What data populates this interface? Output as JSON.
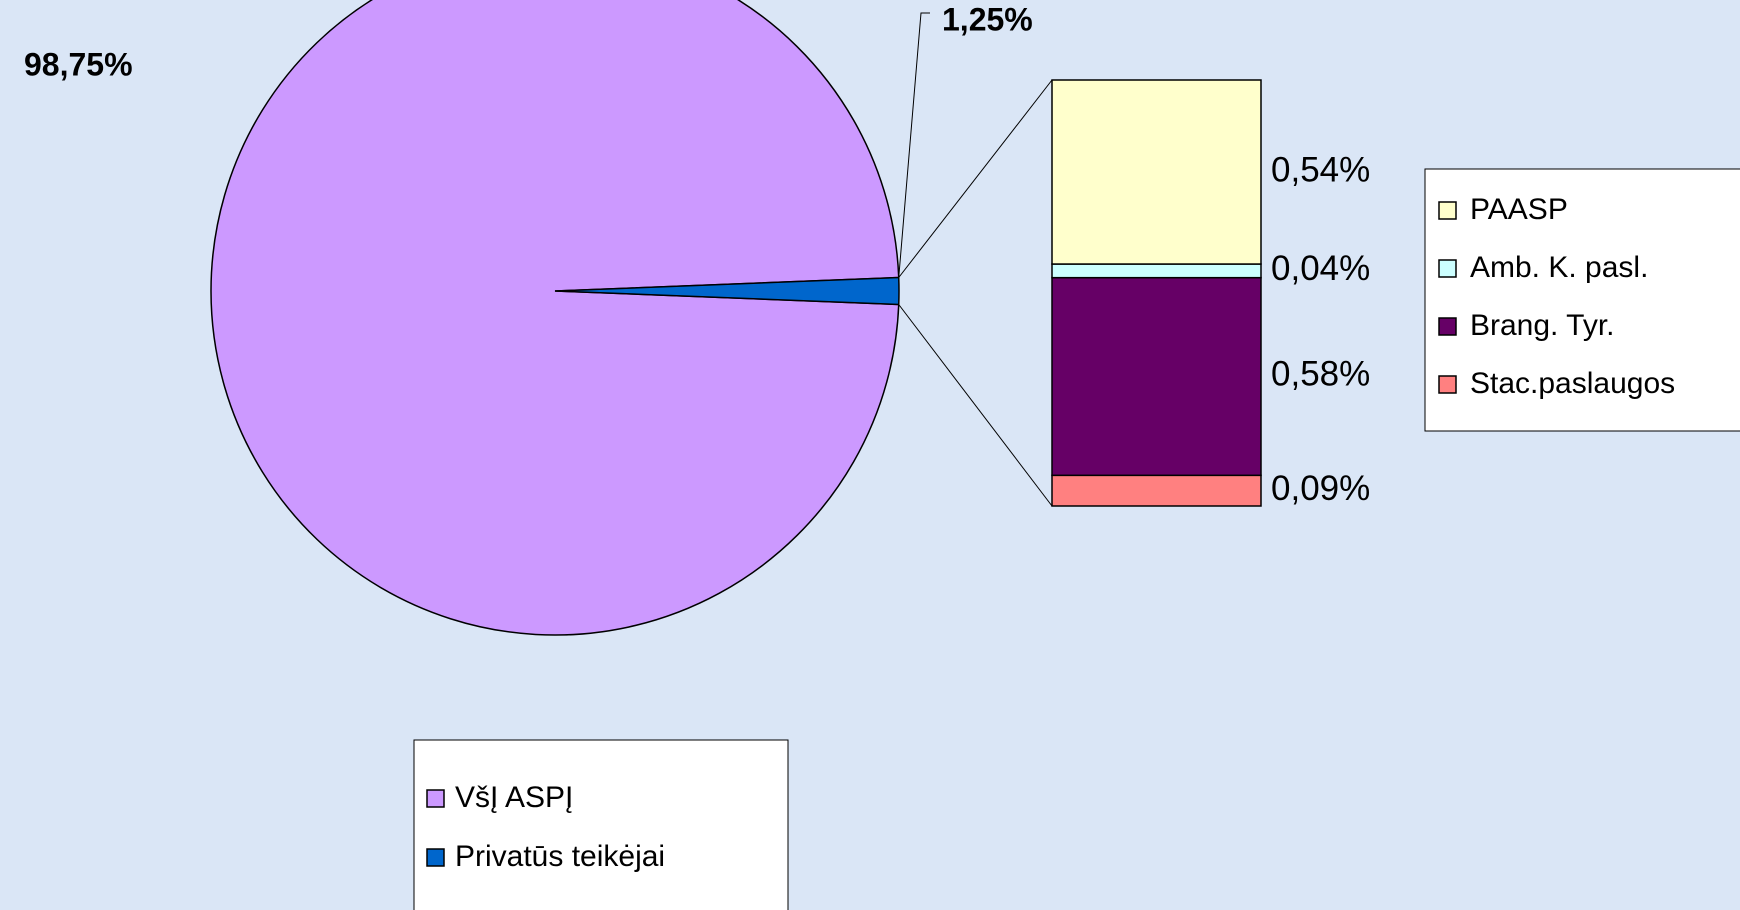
{
  "chart_data": {
    "type": "pie",
    "categories": [
      "VšĮ ASPĮ",
      "Privatūs teikėjai"
    ],
    "values": [
      98.75,
      1.25
    ],
    "value_labels": [
      "98,75%",
      "1,25%"
    ],
    "colors": [
      "#cc99ff",
      "#0066cc"
    ],
    "breakdown": {
      "categories": [
        "PAASP",
        "Amb. K. pasl.",
        "Brang. Tyr.",
        "Stac.paslaugos"
      ],
      "values": [
        0.54,
        0.04,
        0.58,
        0.09
      ],
      "value_labels": [
        "0,54%",
        "0,04%",
        "0,58%",
        "0,09%"
      ],
      "colors": [
        "#ffffcc",
        "#ccffff",
        "#660066",
        "#ff8080"
      ]
    }
  }
}
